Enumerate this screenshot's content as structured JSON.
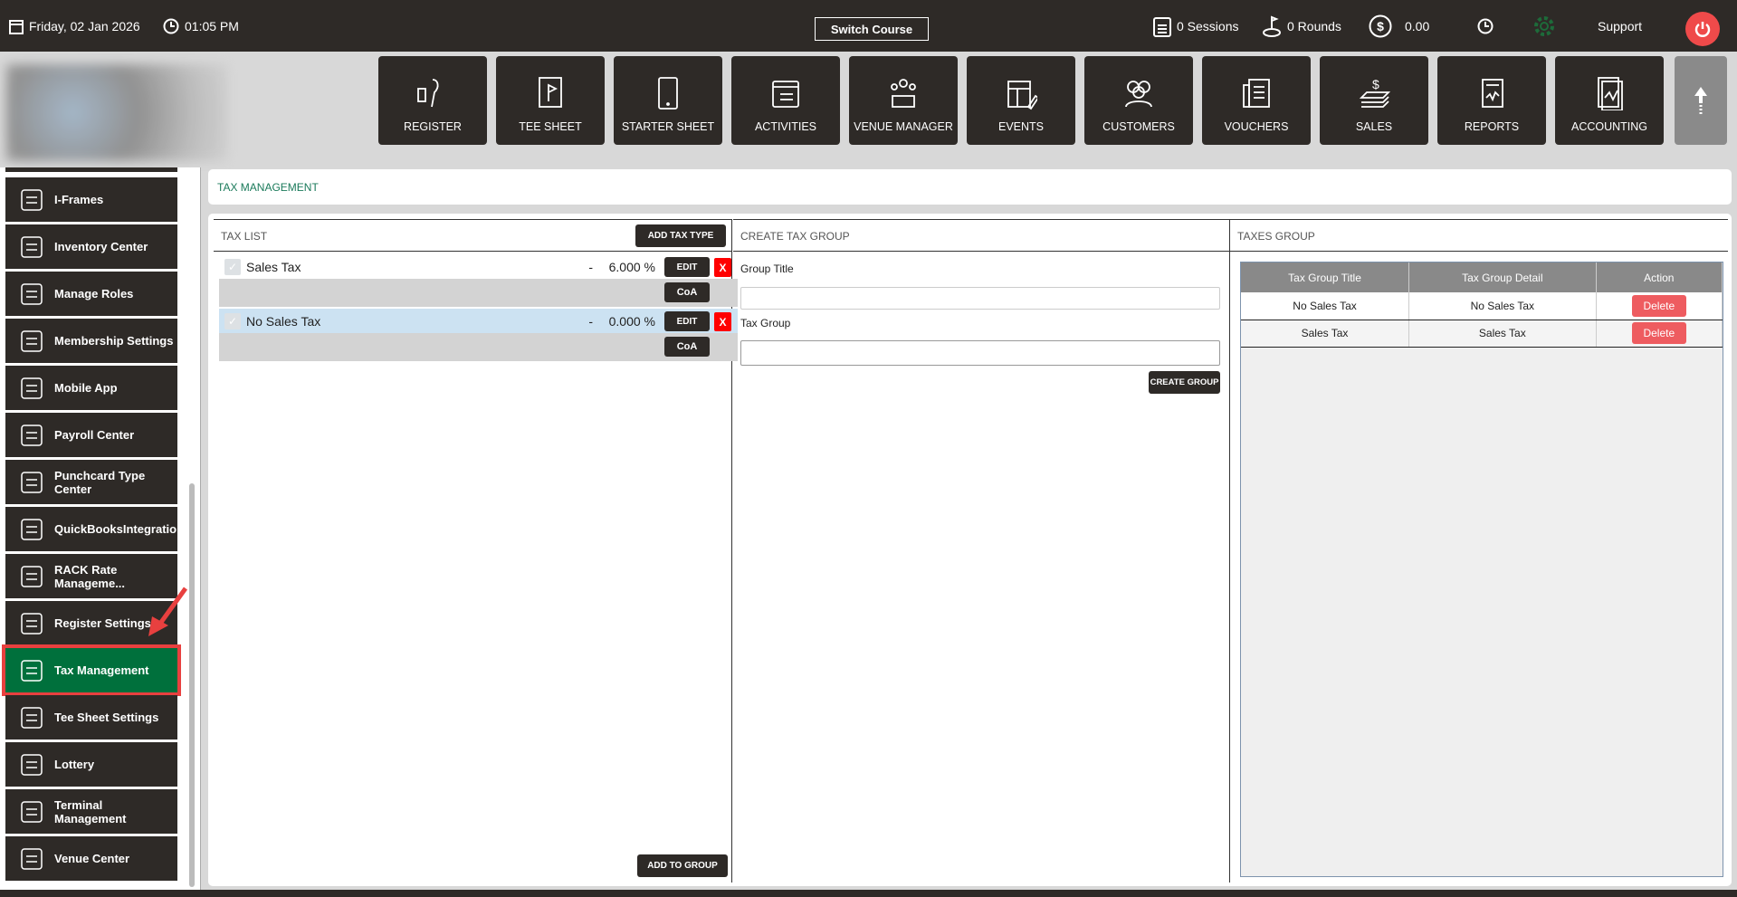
{
  "topbar": {
    "date": "Friday,  02 Jan 2026",
    "time": "01:05 PM",
    "switch_course": "Switch Course",
    "sessions": "0 Sessions",
    "rounds": "0 Rounds",
    "balance": "0.00",
    "support": "Support"
  },
  "nav": [
    {
      "label": "REGISTER",
      "icon": "barcode-scanner"
    },
    {
      "label": "TEE SHEET",
      "icon": "flag-sheet"
    },
    {
      "label": "STARTER SHEET",
      "icon": "tablet"
    },
    {
      "label": "ACTIVITIES",
      "icon": "calendar-list"
    },
    {
      "label": "VENUE MANAGER",
      "icon": "meeting"
    },
    {
      "label": "EVENTS",
      "icon": "calendar-edit"
    },
    {
      "label": "CUSTOMERS",
      "icon": "people"
    },
    {
      "label": "VOUCHERS",
      "icon": "voucher"
    },
    {
      "label": "SALES",
      "icon": "money-stack"
    },
    {
      "label": "REPORTS",
      "icon": "report"
    },
    {
      "label": "ACCOUNTING",
      "icon": "accounting"
    }
  ],
  "sidebar": {
    "items": [
      {
        "label": "I-Frames"
      },
      {
        "label": "Inventory Center"
      },
      {
        "label": "Manage Roles"
      },
      {
        "label": "Membership Settings"
      },
      {
        "label": "Mobile App"
      },
      {
        "label": "Payroll Center"
      },
      {
        "label": "Punchcard Type Center"
      },
      {
        "label": "QuickBooksIntegration"
      },
      {
        "label": "RACK Rate Manageme..."
      },
      {
        "label": "Register Settings"
      },
      {
        "label": "Tax Management",
        "active": true
      },
      {
        "label": "Tee Sheet Settings"
      },
      {
        "label": "Lottery"
      },
      {
        "label": "Terminal Management"
      },
      {
        "label": "Venue Center"
      }
    ]
  },
  "breadcrumb": "TAX MANAGEMENT",
  "tax_list": {
    "title": "TAX LIST",
    "add_label": "ADD TAX TYPE",
    "add_group_label": "ADD TO GROUP",
    "edit_label": "EDIT",
    "delete_label": "X",
    "coa_label": "CoA",
    "items": [
      {
        "name": "Sales Tax",
        "dash": "-",
        "rate": "6.000 %"
      },
      {
        "name": "No Sales Tax",
        "dash": "-",
        "rate": "0.000 %",
        "selected": true
      }
    ]
  },
  "create_group": {
    "title": "CREATE TAX GROUP",
    "group_title_label": "Group Title",
    "group_title_value": "",
    "tax_group_label": "Tax Group",
    "tax_group_value": "",
    "create_label": "CREATE GROUP"
  },
  "taxes_group": {
    "title": "TAXES GROUP",
    "columns": [
      "Tax Group Title",
      "Tax Group Detail",
      "Action"
    ],
    "rows": [
      {
        "title": "No Sales Tax",
        "detail": "No Sales Tax",
        "action": "Delete"
      },
      {
        "title": "Sales Tax",
        "detail": "Sales Tax",
        "action": "Delete"
      }
    ]
  },
  "colors": {
    "topbar": "#2e2a27",
    "active": "#00703c",
    "highlight": "#e8403f",
    "delete": "#ee5c60",
    "power": "#ef4a4a",
    "settings_icon": "#1d6b3a"
  }
}
